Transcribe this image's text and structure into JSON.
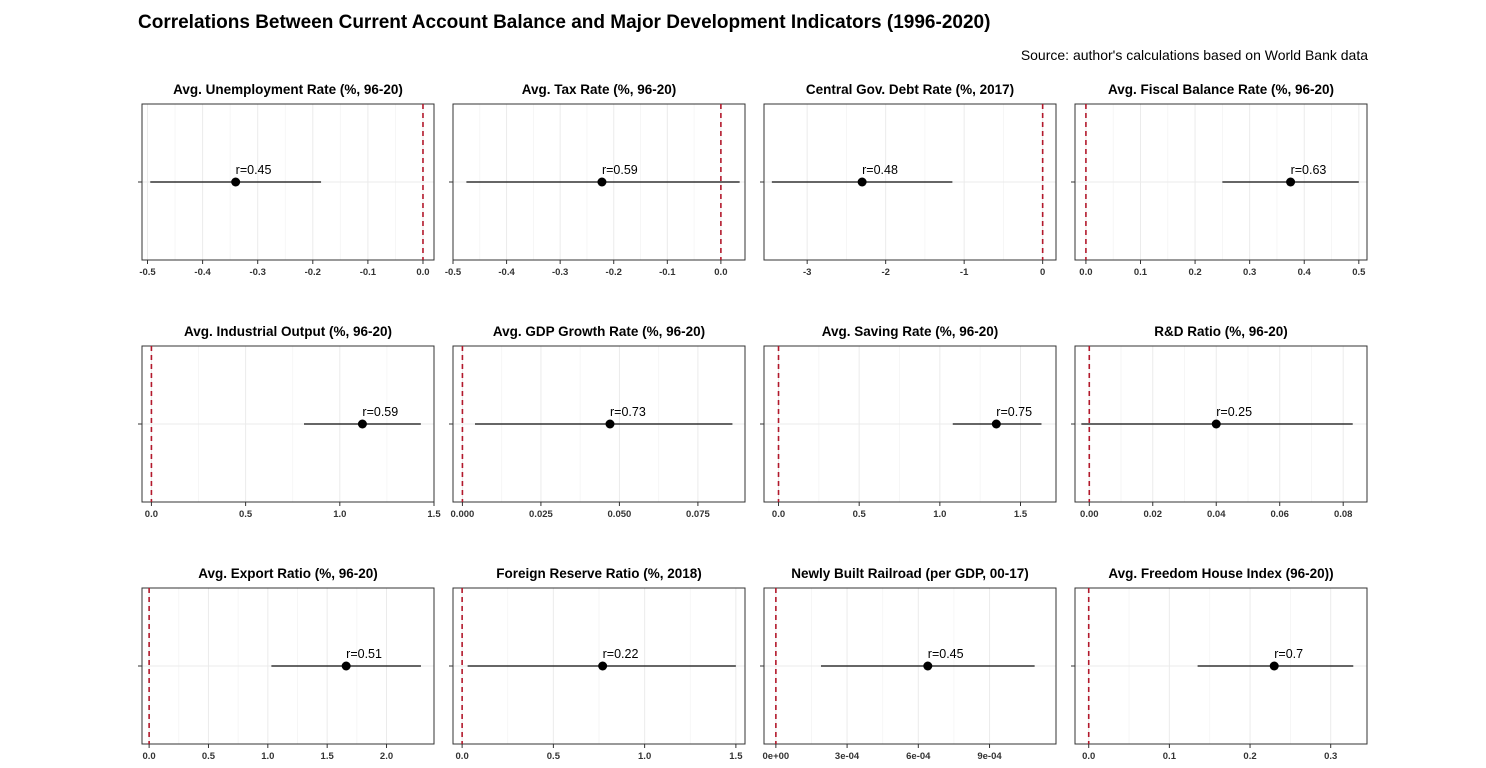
{
  "title": "Correlations Between Current Account Balance and Major Development Indicators (1996-2020)",
  "source": "Source: author's calculations based on World Bank data",
  "colors": {
    "refline": "#b2182b",
    "interval": "#333333",
    "point": "#000000",
    "grid": "#ebebeb",
    "border": "#333333"
  },
  "chart_data": [
    {
      "type": "forest",
      "title": "Avg. Unemployment Rate (%, 96-20)",
      "xlim": [
        -0.51,
        0.02
      ],
      "ticks": [
        -0.5,
        -0.4,
        -0.3,
        -0.2,
        -0.1,
        0.0
      ],
      "tick_labels": [
        "-0.5",
        "-0.4",
        "-0.3",
        "-0.2",
        "-0.1",
        "0.0"
      ],
      "estimate": -0.34,
      "ci": [
        -0.495,
        -0.185
      ],
      "label": "r=0.45",
      "ref": 0
    },
    {
      "type": "forest",
      "title": "Avg. Tax Rate (%, 96-20)",
      "xlim": [
        -0.5,
        0.045
      ],
      "ticks": [
        -0.5,
        -0.4,
        -0.3,
        -0.2,
        -0.1,
        0.0
      ],
      "tick_labels": [
        "-0.5",
        "-0.4",
        "-0.3",
        "-0.2",
        "-0.1",
        "0.0"
      ],
      "estimate": -0.222,
      "ci": [
        -0.475,
        0.035
      ],
      "label": "r=0.59",
      "ref": 0
    },
    {
      "type": "forest",
      "title": "Central Gov. Debt Rate (%, 2017)",
      "xlim": [
        -3.55,
        0.17
      ],
      "ticks": [
        -3,
        -2,
        -1,
        0
      ],
      "tick_labels": [
        "-3",
        "-2",
        "-1",
        "0"
      ],
      "estimate": -2.3,
      "ci": [
        -3.45,
        -1.15
      ],
      "label": "r=0.48",
      "ref": 0
    },
    {
      "type": "forest",
      "title": "Avg. Fiscal Balance Rate (%, 96-20)",
      "xlim": [
        -0.02,
        0.515
      ],
      "ticks": [
        0.0,
        0.1,
        0.2,
        0.3,
        0.4,
        0.5
      ],
      "tick_labels": [
        "0.0",
        "0.1",
        "0.2",
        "0.3",
        "0.4",
        "0.5"
      ],
      "estimate": 0.375,
      "ci": [
        0.25,
        0.5
      ],
      "label": "r=0.63",
      "ref": 0
    },
    {
      "type": "forest",
      "title": "Avg. Industrial Output (%, 96-20)",
      "xlim": [
        -0.05,
        1.5
      ],
      "ticks": [
        0.0,
        0.5,
        1.0,
        1.5
      ],
      "tick_labels": [
        "0.0",
        "0.5",
        "1.0",
        "1.5"
      ],
      "estimate": 1.12,
      "ci": [
        0.81,
        1.43
      ],
      "label": "r=0.59",
      "ref": 0
    },
    {
      "type": "forest",
      "title": "Avg. GDP Growth Rate (%, 96-20)",
      "xlim": [
        -0.003,
        0.09
      ],
      "ticks": [
        0.0,
        0.025,
        0.05,
        0.075
      ],
      "tick_labels": [
        "0.000",
        "0.025",
        "0.050",
        "0.075"
      ],
      "estimate": 0.047,
      "ci": [
        0.004,
        0.086
      ],
      "label": "r=0.73",
      "ref": 0
    },
    {
      "type": "forest",
      "title": "Avg. Saving Rate (%, 96-20)",
      "xlim": [
        -0.09,
        1.72
      ],
      "ticks": [
        0.0,
        0.5,
        1.0,
        1.5
      ],
      "tick_labels": [
        "0.0",
        "0.5",
        "1.0",
        "1.5"
      ],
      "estimate": 1.35,
      "ci": [
        1.08,
        1.63
      ],
      "label": "r=0.75",
      "ref": 0
    },
    {
      "type": "forest",
      "title": "R&D Ratio (%, 96-20)",
      "xlim": [
        -0.0045,
        0.0875
      ],
      "ticks": [
        0.0,
        0.02,
        0.04,
        0.06,
        0.08
      ],
      "tick_labels": [
        "0.00",
        "0.02",
        "0.04",
        "0.06",
        "0.08"
      ],
      "estimate": 0.04,
      "ci": [
        -0.0025,
        0.083
      ],
      "label": "r=0.25",
      "ref": 0
    },
    {
      "type": "forest",
      "title": "Avg. Export Ratio (%, 96-20)",
      "xlim": [
        -0.06,
        2.4
      ],
      "ticks": [
        0.0,
        0.5,
        1.0,
        1.5,
        2.0
      ],
      "tick_labels": [
        "0.0",
        "0.5",
        "1.0",
        "1.5",
        "2.0"
      ],
      "estimate": 1.66,
      "ci": [
        1.03,
        2.29
      ],
      "label": "r=0.51",
      "ref": 0
    },
    {
      "type": "forest",
      "title": "Foreign Reserve Ratio (%, 2018)",
      "xlim": [
        -0.05,
        1.55
      ],
      "ticks": [
        0.0,
        0.5,
        1.0,
        1.5
      ],
      "tick_labels": [
        "0.0",
        "0.5",
        "1.0",
        "1.5"
      ],
      "estimate": 0.77,
      "ci": [
        0.03,
        1.5
      ],
      "label": "r=0.22",
      "ref": 0
    },
    {
      "type": "forest",
      "title": "Newly Built Railroad (per GDP, 00-17)",
      "xlim": [
        -5e-05,
        0.00118
      ],
      "ticks": [
        0.0,
        0.0003,
        0.0006,
        0.0009
      ],
      "tick_labels": [
        "0e+00",
        "3e-04",
        "6e-04",
        "9e-04"
      ],
      "estimate": 0.00064,
      "ci": [
        0.00019,
        0.00109
      ],
      "label": "r=0.45",
      "ref": 0
    },
    {
      "type": "forest",
      "title": "Avg. Freedom House Index (96-20))",
      "xlim": [
        -0.017,
        0.345
      ],
      "ticks": [
        0.0,
        0.1,
        0.2,
        0.3
      ],
      "tick_labels": [
        "0.0",
        "0.1",
        "0.2",
        "0.3"
      ],
      "estimate": 0.23,
      "ci": [
        0.135,
        0.328
      ],
      "label": "r=0.7",
      "ref": 0
    }
  ]
}
